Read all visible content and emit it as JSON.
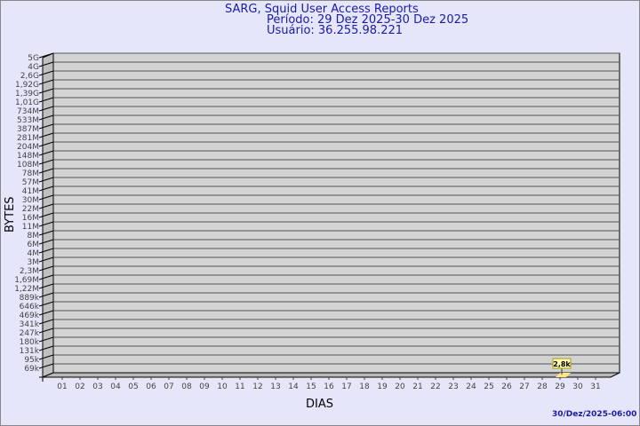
{
  "chart_data": {
    "type": "bar",
    "title": "SARG, Squid User Access Reports",
    "subtitle_period": "Período: 29 Dez 2025-30 Dez 2025",
    "subtitle_user": "Usuário: 36.255.98.221",
    "xlabel": "DIAS",
    "ylabel": "BYTES",
    "footer": "30/Dez/2025-06:00",
    "y_scale": "log",
    "grid": true,
    "y_ticks": [
      "5G",
      "4G",
      "2,6G",
      "1,92G",
      "1,39G",
      "1,01G",
      "734M",
      "533M",
      "387M",
      "281M",
      "204M",
      "148M",
      "108M",
      "78M",
      "57M",
      "41M",
      "30M",
      "22M",
      "16M",
      "11M",
      "8M",
      "6M",
      "4M",
      "3M",
      "2,3M",
      "1,69M",
      "1,22M",
      "889k",
      "646k",
      "469k",
      "341k",
      "247k",
      "180k",
      "131k",
      "95k",
      "69k"
    ],
    "categories": [
      "01",
      "02",
      "03",
      "04",
      "05",
      "06",
      "07",
      "08",
      "09",
      "10",
      "11",
      "12",
      "13",
      "14",
      "15",
      "16",
      "17",
      "18",
      "19",
      "20",
      "21",
      "22",
      "23",
      "24",
      "25",
      "26",
      "27",
      "28",
      "29",
      "30",
      "31"
    ],
    "bars": [
      {
        "category": "29",
        "value": 2800,
        "label": "2,8k"
      }
    ],
    "colors": {
      "background": "#e6e6fa",
      "plot": "#d3d3d3",
      "bar": "#ffe680",
      "text": "#1a1aa6"
    }
  }
}
